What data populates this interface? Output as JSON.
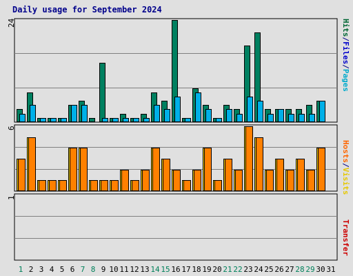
{
  "chart_data": [
    {
      "type": "bar",
      "title": "Daily usage for September 2024",
      "panel": "hits-files-pages",
      "ymax_label": "24",
      "ylim": [
        0,
        24
      ],
      "side_labels": [
        {
          "text": "Hits",
          "color": "#006633"
        },
        {
          "text": "/",
          "color": "#00008b"
        },
        {
          "text": "Files",
          "color": "#0000cc"
        },
        {
          "text": "/",
          "color": "#00008b"
        },
        {
          "text": "Pages",
          "color": "#00aacc"
        }
      ],
      "categories": [
        "1",
        "2",
        "3",
        "4",
        "5",
        "6",
        "7",
        "8",
        "9",
        "10",
        "11",
        "12",
        "13",
        "14",
        "15",
        "16",
        "17",
        "18",
        "19",
        "20",
        "21",
        "22",
        "23",
        "24",
        "25",
        "26",
        "27",
        "28",
        "29",
        "30",
        "31"
      ],
      "series": [
        {
          "name": "Hits",
          "color": "#008060",
          "values": [
            3,
            7,
            1,
            1,
            1,
            4,
            5,
            1,
            14,
            1,
            2,
            1,
            2,
            7,
            5,
            24,
            1,
            8,
            4,
            1,
            4,
            3,
            18,
            21,
            3,
            3,
            3,
            3,
            4,
            5,
            0
          ]
        },
        {
          "name": "Files",
          "color": "#0000cc",
          "values": [
            2,
            4,
            1,
            1,
            1,
            4,
            4,
            0,
            1,
            1,
            1,
            1,
            1,
            4,
            3,
            6,
            1,
            7,
            3,
            1,
            3,
            2,
            6,
            5,
            2,
            3,
            2,
            2,
            2,
            5,
            0
          ]
        },
        {
          "name": "Pages",
          "color": "#00b0e8",
          "values": [
            2,
            4,
            1,
            1,
            1,
            4,
            4,
            0,
            1,
            1,
            1,
            1,
            1,
            4,
            3,
            6,
            1,
            7,
            3,
            1,
            3,
            2,
            6,
            5,
            2,
            3,
            2,
            2,
            2,
            5,
            0
          ]
        }
      ]
    },
    {
      "type": "bar",
      "panel": "visits-hosts",
      "ymax_label": "6",
      "ylim": [
        0,
        6
      ],
      "side_labels": [
        {
          "text": "Hosts",
          "color": "#ff6600"
        },
        {
          "text": "/",
          "color": "#00008b"
        },
        {
          "text": "Visits",
          "color": "#e6c800"
        }
      ],
      "categories": [
        "1",
        "2",
        "3",
        "4",
        "5",
        "6",
        "7",
        "8",
        "9",
        "10",
        "11",
        "12",
        "13",
        "14",
        "15",
        "16",
        "17",
        "18",
        "19",
        "20",
        "21",
        "22",
        "23",
        "24",
        "25",
        "26",
        "27",
        "28",
        "29",
        "30",
        "31"
      ],
      "series": [
        {
          "name": "Visits",
          "color": "#ffd700",
          "values": [
            3,
            5,
            1,
            1,
            1,
            4,
            4,
            1,
            1,
            1,
            2,
            1,
            2,
            4,
            3,
            2,
            1,
            2,
            4,
            1,
            3,
            2,
            6,
            5,
            2,
            3,
            2,
            3,
            2,
            4,
            0
          ]
        },
        {
          "name": "Hosts",
          "color": "#ff8000",
          "values": [
            3,
            5,
            1,
            1,
            1,
            4,
            4,
            1,
            1,
            1,
            2,
            1,
            2,
            4,
            3,
            2,
            1,
            2,
            4,
            1,
            3,
            2,
            6,
            5,
            2,
            3,
            2,
            3,
            2,
            4,
            0
          ]
        }
      ]
    },
    {
      "type": "bar",
      "panel": "transfer",
      "ymax_label": "1",
      "ylim": [
        0,
        1
      ],
      "side_labels": [
        {
          "text": "Transfer",
          "color": "#cc0000"
        }
      ],
      "categories": [
        "1",
        "2",
        "3",
        "4",
        "5",
        "6",
        "7",
        "8",
        "9",
        "10",
        "11",
        "12",
        "13",
        "14",
        "15",
        "16",
        "17",
        "18",
        "19",
        "20",
        "21",
        "22",
        "23",
        "24",
        "25",
        "26",
        "27",
        "28",
        "29",
        "30",
        "31"
      ],
      "series": [
        {
          "name": "Transfer",
          "color": "#cc0000",
          "values": [
            0,
            0,
            0,
            0,
            0,
            0,
            0,
            0,
            0,
            0,
            0,
            0,
            0,
            0,
            0,
            0,
            0,
            0,
            0,
            0,
            0,
            0,
            0,
            0,
            0,
            0,
            0,
            0,
            0,
            0,
            0
          ]
        }
      ]
    }
  ],
  "weekend_days": [
    "1",
    "7",
    "8",
    "14",
    "15",
    "21",
    "22",
    "28",
    "29"
  ],
  "colors": {
    "weekday": "#000000",
    "weekend": "#00805a",
    "grid": "#808080",
    "frame": "#000000"
  }
}
